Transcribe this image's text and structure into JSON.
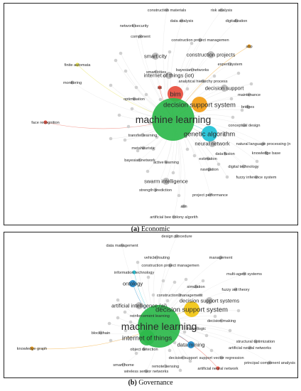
{
  "figure": {
    "panels": [
      {
        "id": "a",
        "caption_tag": "(a)",
        "caption_text": "Economic",
        "terms": [
          {
            "label": "construction materials",
            "weight": 1,
            "color": "#bbbbbb"
          },
          {
            "label": "risk analysis",
            "weight": 1,
            "color": "#bbbbbb"
          },
          {
            "label": "data analysis",
            "weight": 1,
            "color": "#bbbbbb"
          },
          {
            "label": "digitalization",
            "weight": 1,
            "color": "#bbbbbb"
          },
          {
            "label": "network security",
            "weight": 1,
            "color": "#bbbbbb"
          },
          {
            "label": "component",
            "weight": 1,
            "color": "#bbbbbb"
          },
          {
            "label": "construction project managemen",
            "weight": 1,
            "color": "#bbbbbb"
          },
          {
            "label": "abp",
            "weight": 1,
            "color": "#f39c12"
          },
          {
            "label": "smart city",
            "weight": 2,
            "color": "#bbbbbb"
          },
          {
            "label": "construction projects",
            "weight": 2,
            "color": "#bbbbbb"
          },
          {
            "label": "expert system",
            "weight": 1,
            "color": "#bbbbbb"
          },
          {
            "label": "finite automata",
            "weight": 1,
            "color": "#e5e04a"
          },
          {
            "label": "bayesian networks",
            "weight": 1,
            "color": "#bbbbbb"
          },
          {
            "label": "internet of things (iot)",
            "weight": 2,
            "color": "#bbbbbb"
          },
          {
            "label": "smart cities",
            "weight": 1,
            "color": "#bbbbbb"
          },
          {
            "label": "analytical hierarchy process",
            "weight": 1,
            "color": "#bbbbbb"
          },
          {
            "label": "monitoring",
            "weight": 1,
            "color": "#bbbbbb"
          },
          {
            "label": "iot",
            "weight": 1,
            "color": "#e74c3c"
          },
          {
            "label": "decision support",
            "weight": 2,
            "color": "#bbbbbb"
          },
          {
            "label": "maintenance",
            "weight": 1,
            "color": "#bbbbbb"
          },
          {
            "label": "bim",
            "weight": 3,
            "color": "#e74c3c"
          },
          {
            "label": "optimisation",
            "weight": 1,
            "color": "#bbbbbb"
          },
          {
            "label": "decision support system",
            "weight": 3,
            "color": "#f39c12"
          },
          {
            "label": "bridges",
            "weight": 1,
            "color": "#bbbbbb"
          },
          {
            "label": "machine learning",
            "weight": 5,
            "color": "#2db84b"
          },
          {
            "label": "face recognition",
            "weight": 1,
            "color": "#e74c3c"
          },
          {
            "label": "conceptual design",
            "weight": 1,
            "color": "#bbbbbb"
          },
          {
            "label": "genetic algorithm",
            "weight": 3,
            "color": "#1ec1d6"
          },
          {
            "label": "transfer learning",
            "weight": 1,
            "color": "#bbbbbb"
          },
          {
            "label": "neural network",
            "weight": 2,
            "color": "#bbbbbb"
          },
          {
            "label": "natural language processing (n",
            "weight": 1,
            "color": "#bbbbbb"
          },
          {
            "label": "metaheuristic",
            "weight": 1,
            "color": "#bbbbbb"
          },
          {
            "label": "data fusion",
            "weight": 1,
            "color": "#bbbbbb"
          },
          {
            "label": "knowledge base",
            "weight": 1,
            "color": "#bbbbbb"
          },
          {
            "label": "estimation",
            "weight": 1,
            "color": "#bbbbbb"
          },
          {
            "label": "bayesian network",
            "weight": 1,
            "color": "#bbbbbb"
          },
          {
            "label": "active learning",
            "weight": 1,
            "color": "#bbbbbb"
          },
          {
            "label": "digital technology",
            "weight": 1,
            "color": "#bbbbbb"
          },
          {
            "label": "navigation",
            "weight": 1,
            "color": "#bbbbbb"
          },
          {
            "label": "fuzzy inference system",
            "weight": 1,
            "color": "#bbbbbb"
          },
          {
            "label": "swarm intelligence",
            "weight": 2,
            "color": "#bbbbbb"
          },
          {
            "label": "strength prediction",
            "weight": 1,
            "color": "#bbbbbb"
          },
          {
            "label": "project performance",
            "weight": 1,
            "color": "#bbbbbb"
          },
          {
            "label": "ann",
            "weight": 1,
            "color": "#bbbbbb"
          },
          {
            "label": "artificial bee colony algorith",
            "weight": 1,
            "color": "#bbbbbb"
          }
        ]
      },
      {
        "id": "b",
        "caption_tag": "(b)",
        "caption_text": "Governance",
        "terms": [
          {
            "label": "design procedure",
            "weight": 1,
            "color": "#bbbbbb"
          },
          {
            "label": "data management",
            "weight": 1,
            "color": "#bbbbbb"
          },
          {
            "label": "management",
            "weight": 1,
            "color": "#bbbbbb"
          },
          {
            "label": "vehicle routing",
            "weight": 1,
            "color": "#bbbbbb"
          },
          {
            "label": "construction project managemen",
            "weight": 1,
            "color": "#bbbbbb"
          },
          {
            "label": "information technology",
            "weight": 1,
            "color": "#1ec1d6"
          },
          {
            "label": "multi-agent systems",
            "weight": 1,
            "color": "#bbbbbb"
          },
          {
            "label": "fuzzy set theory",
            "weight": 1,
            "color": "#bbbbbb"
          },
          {
            "label": "ontology",
            "weight": 2,
            "color": "#1e88c9"
          },
          {
            "label": "simulation",
            "weight": 1,
            "color": "#bbbbbb"
          },
          {
            "label": "construction management",
            "weight": 1,
            "color": "#bbbbbb"
          },
          {
            "label": "decision support systems",
            "weight": 2,
            "color": "#bbbbbb"
          },
          {
            "label": "artificial intelligence (ai)",
            "weight": 2,
            "color": "#bbbbbb"
          },
          {
            "label": "decision support system",
            "weight": 3,
            "color": "#f1c40f"
          },
          {
            "label": "reinforcement learning",
            "weight": 1,
            "color": "#bbbbbb"
          },
          {
            "label": "decision making",
            "weight": 1,
            "color": "#bbbbbb"
          },
          {
            "label": "machine learning",
            "weight": 5,
            "color": "#2db84b"
          },
          {
            "label": "fuzzy logic",
            "weight": 1,
            "color": "#bbbbbb"
          },
          {
            "label": "internet of things",
            "weight": 3,
            "color": "#2db84b"
          },
          {
            "label": "blockchain",
            "weight": 1,
            "color": "#bbbbbb"
          },
          {
            "label": "structural optimization",
            "weight": 1,
            "color": "#bbbbbb"
          },
          {
            "label": "data mining",
            "weight": 2,
            "color": "#1e88c9"
          },
          {
            "label": "artificial neural networks",
            "weight": 1,
            "color": "#bbbbbb"
          },
          {
            "label": "knowledge graph",
            "weight": 1,
            "color": "#f39c12"
          },
          {
            "label": "object detection",
            "weight": 1,
            "color": "#bbbbbb"
          },
          {
            "label": "decision support",
            "weight": 1,
            "color": "#bbbbbb"
          },
          {
            "label": "support vector regression",
            "weight": 1,
            "color": "#bbbbbb"
          },
          {
            "label": "principal component analysis",
            "weight": 1,
            "color": "#bbbbbb"
          },
          {
            "label": "remote sensing",
            "weight": 1,
            "color": "#bbbbbb"
          },
          {
            "label": "smart home",
            "weight": 1,
            "color": "#bbbbbb"
          },
          {
            "label": "artificial neural network",
            "weight": 1,
            "color": "#e74c3c"
          },
          {
            "label": "wireless sensor networks",
            "weight": 1,
            "color": "#bbbbbb"
          }
        ]
      }
    ]
  }
}
